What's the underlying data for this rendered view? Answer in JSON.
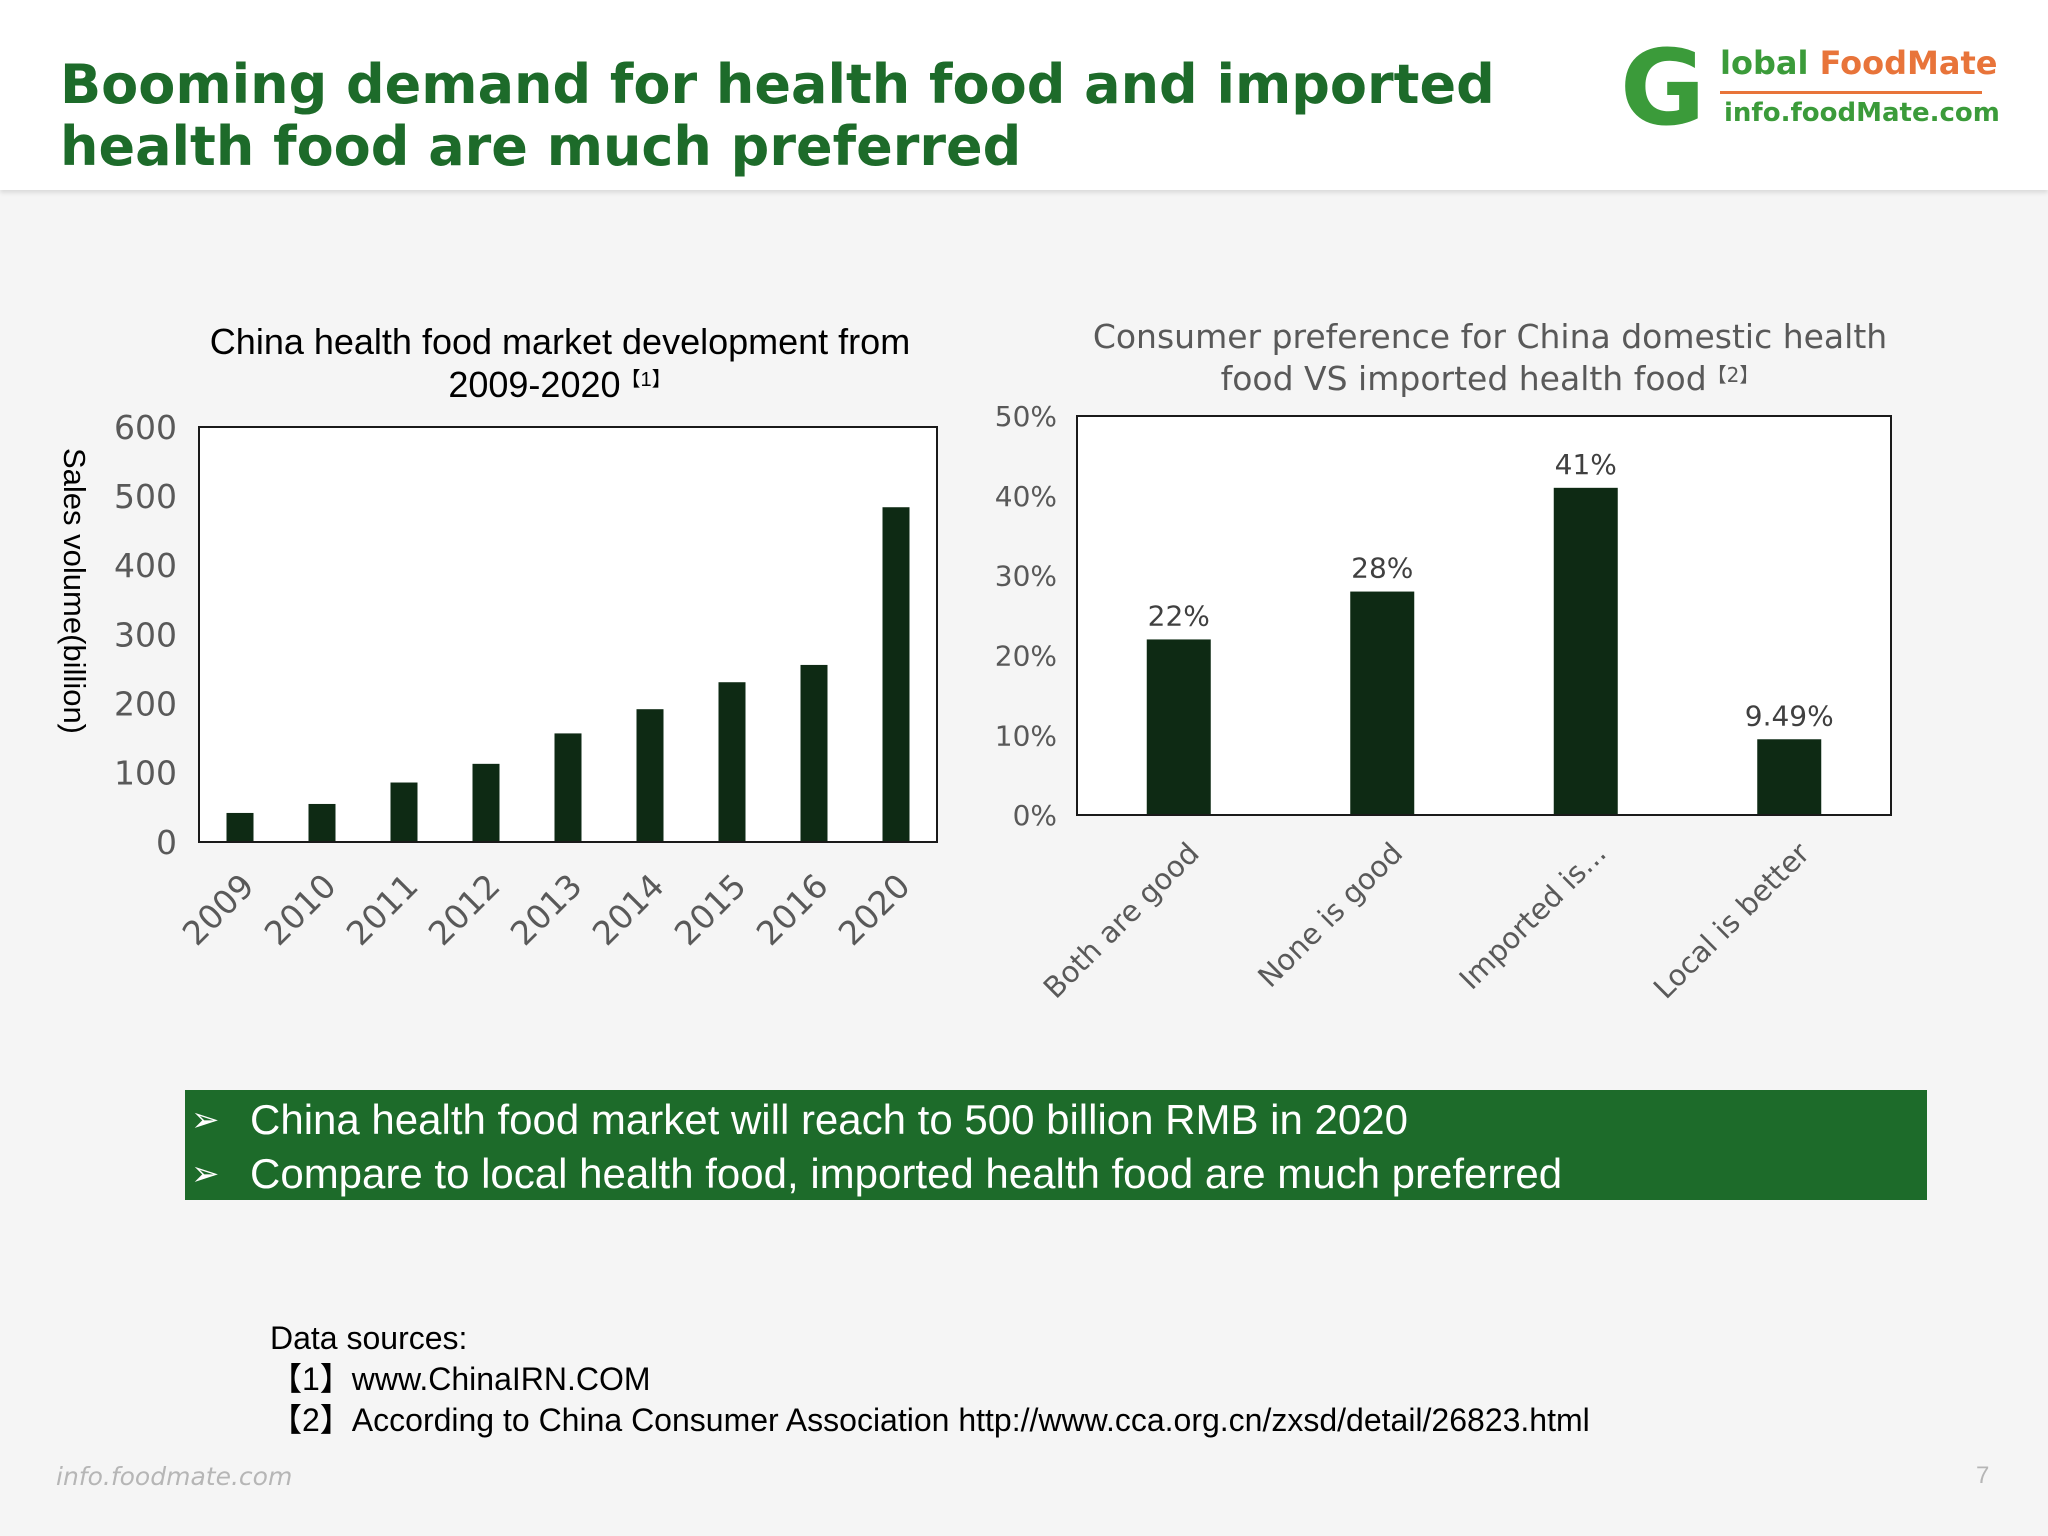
{
  "header": {
    "title": "Booming demand for health food and imported health food are much preferred",
    "logo": {
      "g": "G",
      "line1_a": "lobal",
      "line1_b": "FoodMate",
      "line2": "info.foodMate.com"
    }
  },
  "chart_data": [
    {
      "type": "bar",
      "title": "China health food market development  from 2009-2020",
      "title_line1": "China health food market development  from",
      "title_line2": "2009-2020",
      "title_ref": "【1】",
      "ylabel": "Sales volume(billion)",
      "xlabel": "",
      "categories": [
        "2009",
        "2010",
        "2011",
        "2012",
        "2013",
        "2014",
        "2015",
        "2016",
        "2020"
      ],
      "values": [
        42,
        55,
        86,
        113,
        157,
        192,
        231,
        256,
        484
      ],
      "ylim": [
        0,
        600
      ],
      "yticks": [
        "0",
        "100",
        "200",
        "300",
        "400",
        "500",
        "600"
      ],
      "bar_color": "#0e2a14",
      "grid": false,
      "legend": "none"
    },
    {
      "type": "bar",
      "title": "Consumer preference for China domestic health food VS imported health food",
      "title_line1": "Consumer preference for China domestic health",
      "title_line2": "food VS imported health food",
      "title_ref": "【2】",
      "xlabel": "",
      "ylabel": "",
      "categories": [
        "Both  are good",
        "None is good",
        "Imported is...",
        "Local is better"
      ],
      "values": [
        22,
        28,
        41,
        9.49
      ],
      "data_labels": [
        "22%",
        "28%",
        "41%",
        "9.49%"
      ],
      "ylim": [
        0,
        50
      ],
      "yticks": [
        "0%",
        "10%",
        "20%",
        "30%",
        "40%",
        "50%"
      ],
      "bar_color": "#0e2a14",
      "grid": false,
      "legend": "none"
    }
  ],
  "callout": {
    "bullet_symbol": "➢",
    "bullets": [
      "China health food market will reach to 500 billion RMB in 2020",
      "Compare to local health food, imported health food are much preferred"
    ]
  },
  "sources": {
    "heading": "Data sources:",
    "items": [
      "【1】www.ChinaIRN.COM",
      "【2】According to China Consumer Association http://www.cca.org.cn/zxsd/detail/26823.html"
    ]
  },
  "footer": {
    "url": "info.foodmate.com",
    "page": "7"
  }
}
